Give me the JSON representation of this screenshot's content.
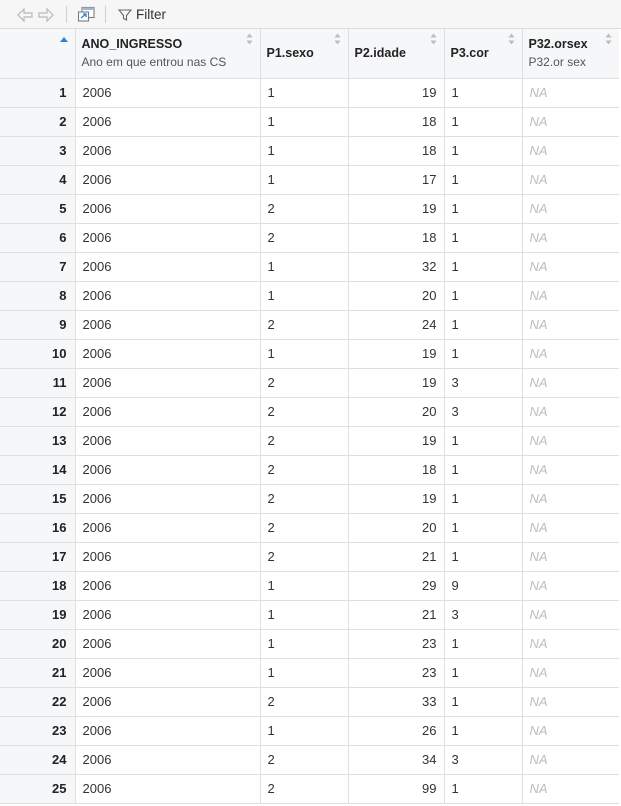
{
  "toolbar": {
    "filter_label": "Filter",
    "icons": [
      "back-arrow-icon",
      "forward-arrow-icon",
      "popout-icon",
      "filter-icon"
    ]
  },
  "columns": [
    {
      "name": "ANO_INGRESSO",
      "label": "Ano em que entrou nas CS",
      "sorted": "ascending"
    },
    {
      "name": "P1.sexo",
      "label": ""
    },
    {
      "name": "P2.idade",
      "label": ""
    },
    {
      "name": "P3.cor",
      "label": ""
    },
    {
      "name": "P32.orsex",
      "label": "P32.or sex"
    }
  ],
  "rows": [
    {
      "n": "1",
      "ano": "2006",
      "sexo": "1",
      "idade": "19",
      "cor": "1",
      "orsex": "NA"
    },
    {
      "n": "2",
      "ano": "2006",
      "sexo": "1",
      "idade": "18",
      "cor": "1",
      "orsex": "NA"
    },
    {
      "n": "3",
      "ano": "2006",
      "sexo": "1",
      "idade": "18",
      "cor": "1",
      "orsex": "NA"
    },
    {
      "n": "4",
      "ano": "2006",
      "sexo": "1",
      "idade": "17",
      "cor": "1",
      "orsex": "NA"
    },
    {
      "n": "5",
      "ano": "2006",
      "sexo": "2",
      "idade": "19",
      "cor": "1",
      "orsex": "NA"
    },
    {
      "n": "6",
      "ano": "2006",
      "sexo": "2",
      "idade": "18",
      "cor": "1",
      "orsex": "NA"
    },
    {
      "n": "7",
      "ano": "2006",
      "sexo": "1",
      "idade": "32",
      "cor": "1",
      "orsex": "NA"
    },
    {
      "n": "8",
      "ano": "2006",
      "sexo": "1",
      "idade": "20",
      "cor": "1",
      "orsex": "NA"
    },
    {
      "n": "9",
      "ano": "2006",
      "sexo": "2",
      "idade": "24",
      "cor": "1",
      "orsex": "NA"
    },
    {
      "n": "10",
      "ano": "2006",
      "sexo": "1",
      "idade": "19",
      "cor": "1",
      "orsex": "NA"
    },
    {
      "n": "11",
      "ano": "2006",
      "sexo": "2",
      "idade": "19",
      "cor": "3",
      "orsex": "NA"
    },
    {
      "n": "12",
      "ano": "2006",
      "sexo": "2",
      "idade": "20",
      "cor": "3",
      "orsex": "NA"
    },
    {
      "n": "13",
      "ano": "2006",
      "sexo": "2",
      "idade": "19",
      "cor": "1",
      "orsex": "NA"
    },
    {
      "n": "14",
      "ano": "2006",
      "sexo": "2",
      "idade": "18",
      "cor": "1",
      "orsex": "NA"
    },
    {
      "n": "15",
      "ano": "2006",
      "sexo": "2",
      "idade": "19",
      "cor": "1",
      "orsex": "NA"
    },
    {
      "n": "16",
      "ano": "2006",
      "sexo": "2",
      "idade": "20",
      "cor": "1",
      "orsex": "NA"
    },
    {
      "n": "17",
      "ano": "2006",
      "sexo": "2",
      "idade": "21",
      "cor": "1",
      "orsex": "NA"
    },
    {
      "n": "18",
      "ano": "2006",
      "sexo": "1",
      "idade": "29",
      "cor": "9",
      "orsex": "NA"
    },
    {
      "n": "19",
      "ano": "2006",
      "sexo": "1",
      "idade": "21",
      "cor": "3",
      "orsex": "NA"
    },
    {
      "n": "20",
      "ano": "2006",
      "sexo": "1",
      "idade": "23",
      "cor": "1",
      "orsex": "NA"
    },
    {
      "n": "21",
      "ano": "2006",
      "sexo": "1",
      "idade": "23",
      "cor": "1",
      "orsex": "NA"
    },
    {
      "n": "22",
      "ano": "2006",
      "sexo": "2",
      "idade": "33",
      "cor": "1",
      "orsex": "NA"
    },
    {
      "n": "23",
      "ano": "2006",
      "sexo": "1",
      "idade": "26",
      "cor": "1",
      "orsex": "NA"
    },
    {
      "n": "24",
      "ano": "2006",
      "sexo": "2",
      "idade": "34",
      "cor": "3",
      "orsex": "NA"
    },
    {
      "n": "25",
      "ano": "2006",
      "sexo": "2",
      "idade": "99",
      "cor": "1",
      "orsex": "NA"
    }
  ]
}
